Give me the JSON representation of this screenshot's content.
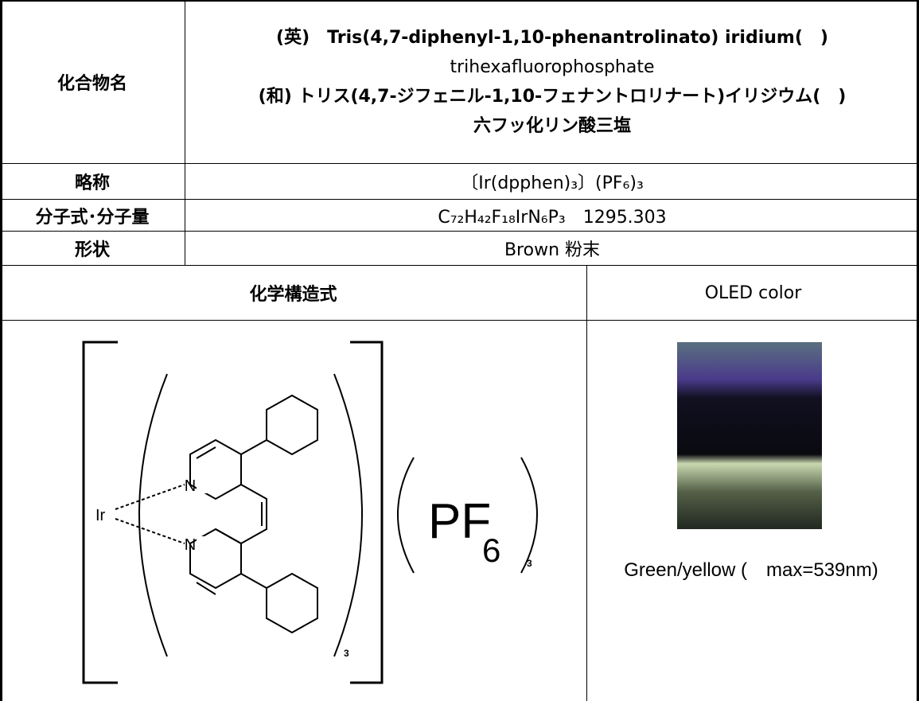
{
  "rows": [
    {
      "label": "化合物名",
      "lines": [
        "(英)　Tris(4,7-diphenyl-1,10-phenantrolinato) iridium(　)",
        "trihexafluorophosphate",
        "(和) トリス(4,7-ジフェニル-1,10-フェナントロリナート)イリジウム(　)",
        "六フッ化リン酸三塩"
      ]
    },
    {
      "label": "略称",
      "value": "〔Ir(dpphen)₃〕(PF₆)₃"
    },
    {
      "label": "分子式･分子量",
      "value": "C₇₂H₄₂F₁₈IrN₆P₃　1295.303"
    },
    {
      "label": "形状",
      "value": "Brown 粉末"
    }
  ],
  "structure": {
    "header": "化学構造式",
    "metal": "Ir",
    "n_top": "N",
    "n_bottom": "N",
    "ligand_count": "3",
    "anion": "PF",
    "anion_sub": "6",
    "anion_count": "3"
  },
  "oled": {
    "header": "OLED color",
    "caption": "Green/yellow (　max=539nm)"
  }
}
